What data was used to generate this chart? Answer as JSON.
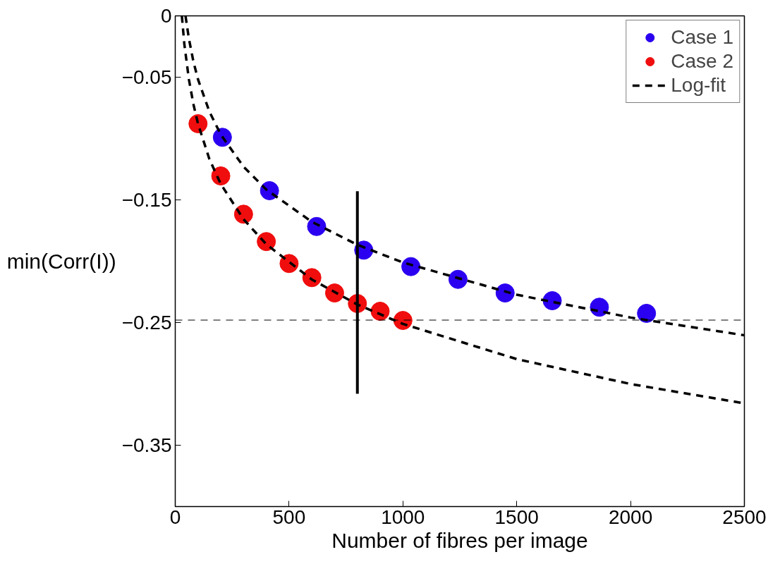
{
  "chart_data": {
    "type": "scatter",
    "xlabel": "Number of fibres per image",
    "ylabel": "min(Corr(I))",
    "xlim": [
      0,
      2500
    ],
    "ylim": [
      -0.4,
      0
    ],
    "xticks": [
      0,
      500,
      1000,
      1500,
      2000,
      2500
    ],
    "yticks": [
      0,
      {
        "value": -0.05,
        "label": "−0.05"
      },
      {
        "value": -0.15,
        "label": "−0.15"
      },
      {
        "value": -0.25,
        "label": "−0.25"
      },
      {
        "value": -0.35,
        "label": "−0.35"
      }
    ],
    "grid": false,
    "legend": "top right",
    "marker": "circle",
    "series": [
      {
        "name": "Case 1",
        "color": "#2b00f0",
        "x": [
          207,
          414,
          621,
          828,
          1035,
          1242,
          1449,
          1656,
          1863,
          2070
        ],
        "values": [
          -0.099,
          -0.1425,
          -0.1717,
          -0.191,
          -0.2044,
          -0.2148,
          -0.2259,
          -0.2322,
          -0.2375,
          -0.2425
        ]
      },
      {
        "name": "Case 2",
        "color": "#f00d0d",
        "x": [
          100,
          200,
          300,
          400,
          500,
          600,
          700,
          800,
          900,
          1000
        ],
        "values": [
          -0.0879,
          -0.1305,
          -0.1617,
          -0.184,
          -0.2019,
          -0.2134,
          -0.2259,
          -0.2345,
          -0.2408,
          -0.2483
        ]
      },
      {
        "name": "Log-fit",
        "color": "#000000",
        "type": "line",
        "line_style": "dashed",
        "marker": "none",
        "x": [
          45,
          60,
          80,
          100,
          150,
          200,
          300,
          400,
          600,
          800,
          1000,
          1500,
          2000,
          2500
        ],
        "values": [
          0.0,
          -0.0187,
          -0.0374,
          -0.0518,
          -0.0781,
          -0.0967,
          -0.123,
          -0.1416,
          -0.1679,
          -0.1866,
          -0.201,
          -0.2273,
          -0.2459,
          -0.2604
        ]
      },
      {
        "color": "#000000",
        "type": "line",
        "line_style": "dashed",
        "marker": "none",
        "x": [
          29,
          40,
          60,
          80,
          100,
          150,
          200,
          300,
          400,
          600,
          800,
          1000,
          1500,
          2000,
          2500
        ],
        "values": [
          0.0,
          -0.0232,
          -0.0519,
          -0.0722,
          -0.088,
          -0.1168,
          -0.1371,
          -0.1658,
          -0.1862,
          -0.2149,
          -0.2353,
          -0.2511,
          -0.2798,
          -0.3001,
          -0.3159
        ]
      },
      {
        "color": "#000000",
        "type": "line",
        "line_style": "solid",
        "marker": "none",
        "x": [
          800,
          800
        ],
        "values": [
          -0.143,
          -0.308
        ]
      }
    ],
    "ref_lines": [
      {
        "axis": "y",
        "value": -0.248,
        "color": "#000000",
        "line_style": "dashed"
      }
    ]
  }
}
